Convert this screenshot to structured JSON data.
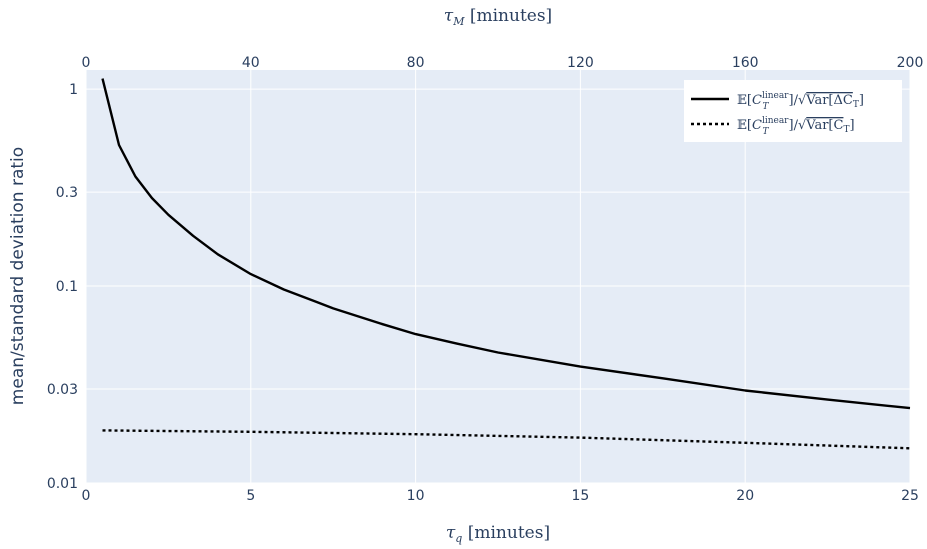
{
  "chart_data": {
    "type": "line",
    "xlabel": "τ_q [minutes]",
    "x2label": "τ_M [minutes]",
    "ylabel": "mean/standard deviation ratio",
    "y_scale": "log",
    "xlim": [
      0,
      25
    ],
    "x2lim": [
      0,
      200
    ],
    "ylim": [
      0.01,
      1.25
    ],
    "xticks": [
      "0",
      "5",
      "10",
      "15",
      "20",
      "25"
    ],
    "x2ticks": [
      "0",
      "40",
      "80",
      "120",
      "160",
      "200"
    ],
    "yticks": [
      {
        "value": 0.01,
        "label": "0.01"
      },
      {
        "value": 0.03,
        "label": "0.03"
      },
      {
        "value": 0.1,
        "label": "0.1"
      },
      {
        "value": 0.3,
        "label": "0.3"
      },
      {
        "value": 1,
        "label": "1"
      }
    ],
    "grid": true,
    "legend_position": "top-right",
    "series": [
      {
        "name": "𝔼[C_T^linear]/√Var[ΔC_T]",
        "color": "#000000",
        "dash": "solid",
        "x": [
          0.5,
          1,
          1.5,
          2,
          2.5,
          3.25,
          4,
          5,
          6,
          7,
          7.5,
          9,
          10,
          11.25,
          12.5,
          15,
          17.5,
          20,
          22.5,
          25
        ],
        "y": [
          1.13,
          0.52,
          0.36,
          0.28,
          0.23,
          0.18,
          0.145,
          0.115,
          0.096,
          0.083,
          0.077,
          0.064,
          0.057,
          0.051,
          0.046,
          0.039,
          0.034,
          0.0295,
          0.0265,
          0.024
        ]
      },
      {
        "name": "𝔼[C_T^linear]/√Var[C_T]",
        "color": "#000000",
        "dash": "dot",
        "x": [
          0.5,
          5,
          10,
          15,
          20,
          25
        ],
        "y": [
          0.0185,
          0.0182,
          0.0177,
          0.017,
          0.016,
          0.015
        ]
      }
    ]
  }
}
